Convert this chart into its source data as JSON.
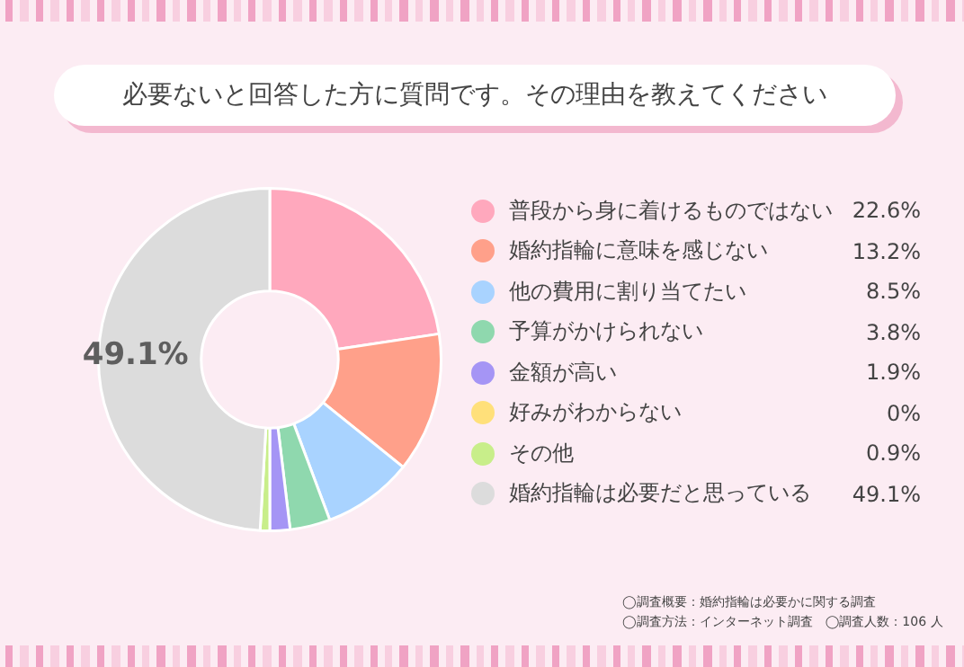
{
  "chart_data": {
    "type": "donut",
    "title": "必要ないと回答した方に質問です。その理由を教えてください",
    "categories": [
      "普段から身に着けるものではない",
      "婚約指輪に意味を感じない",
      "他の費用に割り当てたい",
      "予算がかけられない",
      "金額が高い",
      "好みがわからない",
      "その他",
      "婚約指輪は必要だと思っている"
    ],
    "values": [
      22.6,
      13.2,
      8.5,
      3.8,
      1.9,
      0,
      0.9,
      49.1
    ],
    "colors": [
      "#ffa8bd",
      "#ffa08a",
      "#a9d3ff",
      "#8fd8ae",
      "#a595f5",
      "#ffe07a",
      "#c8ee8a",
      "#dcdcdc"
    ],
    "value_labels": [
      "22.6%",
      "13.2%",
      "8.5%",
      "3.8%",
      "1.9%",
      "0%",
      "0.9%",
      "49.1%"
    ],
    "legend": "right",
    "annotations": [
      "◯調査概要：婚約指輪は必要かに関する調査",
      "◯調査方法：インターネット調査　◯調査人数：106 人"
    ]
  }
}
